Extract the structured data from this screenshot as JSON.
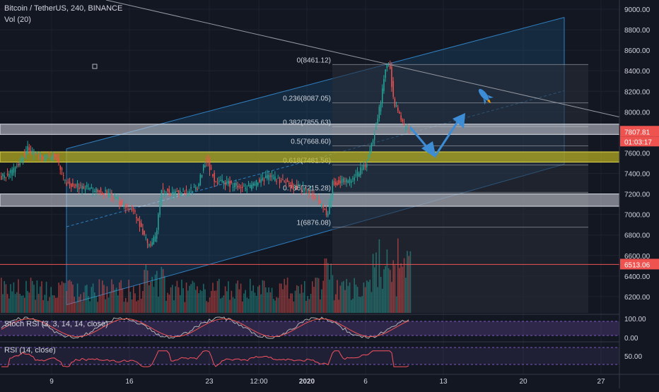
{
  "header": {
    "symbol": "Bitcoin / TetherUS, 240, BINANCE",
    "volume_label": "Vol (20)"
  },
  "colors": {
    "bg": "#131722",
    "grid": "#1e222d",
    "up": "#26a69a",
    "down": "#ef5350",
    "channel": "#1c5d8c",
    "fib": "#b2b5be",
    "support_gray": "#d1d4dc",
    "support_yellow": "#bdb521",
    "rsi": "#f7525f",
    "stoch_k": "#b0b0b0",
    "stoch_d": "#ef5350",
    "arrow": "#3d8dd6"
  },
  "chart_data": [
    {
      "type": "candlestick",
      "series": "BTCUSDT",
      "price_axis_labels": [
        "9000.00",
        "8800.00",
        "8600.00",
        "8400.00",
        "8200.00",
        "8000.00",
        "7800.00",
        "7600.00",
        "7400.00",
        "7200.00",
        "7000.00",
        "6800.00",
        "6600.00",
        "6400.00",
        "6200.00"
      ],
      "ylim": [
        6050,
        9080
      ],
      "time_axis_labels": [
        "9",
        "16",
        "23",
        "12:00",
        "2020",
        "6",
        "13",
        "20",
        "27"
      ],
      "last_price": "7807.81",
      "countdown": "01:03:17",
      "hline_price": "6513.06",
      "fib_levels": [
        {
          "label": "0(8461.12)",
          "price": 8461.12
        },
        {
          "label": "0.236(8087.05)",
          "price": 8087.05
        },
        {
          "label": "0.382(7855.63)",
          "price": 7855.63
        },
        {
          "label": "0.5(7668.60)",
          "price": 7668.6
        },
        {
          "label": "0.618(7481.56)",
          "price": 7481.56
        },
        {
          "label": "0.786(7215.28)",
          "price": 7215.28
        },
        {
          "label": "1(6876.08)",
          "price": 6876.08
        }
      ],
      "zones": [
        {
          "name": "gray-upper",
          "from": 7780,
          "to": 7880,
          "color": "gray"
        },
        {
          "name": "yellow",
          "from": 7510,
          "to": 7610,
          "color": "yellow"
        },
        {
          "name": "gray-lower",
          "from": 7080,
          "to": 7200,
          "color": "gray"
        }
      ]
    },
    {
      "type": "line",
      "title": "Stoch RSI (3, 3, 14, 14, close)",
      "axis_labels": [
        "100.00",
        "0.00"
      ],
      "ylim": [
        0,
        100
      ]
    },
    {
      "type": "line",
      "title": "RSI (14, close)",
      "axis_labels": [
        "50.00"
      ],
      "ylim": [
        0,
        100
      ]
    }
  ]
}
